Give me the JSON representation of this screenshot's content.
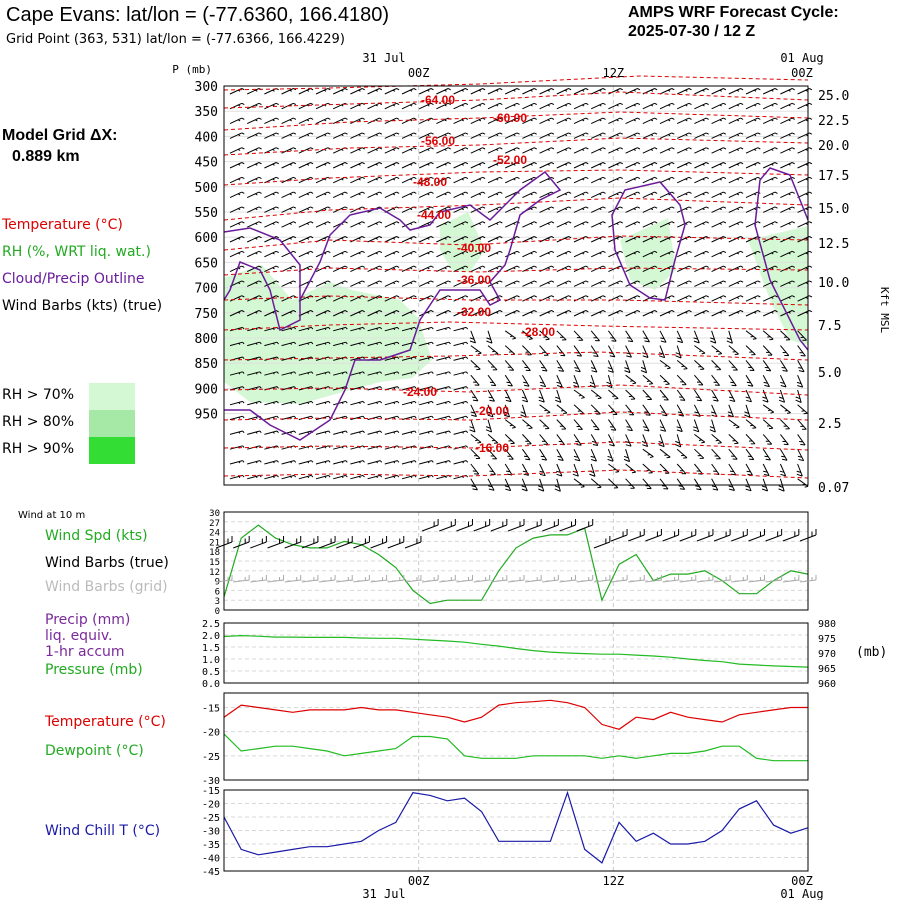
{
  "header": {
    "title": "Cape Evans:  lat/lon = (-77.6360, 166.4180)",
    "grid_point": "Grid Point (363, 531) lat/lon = (-77.6366, 166.4229)",
    "cycle_line1": "AMPS WRF Forecast Cycle:",
    "cycle_line2": "2025-07-30 / 12  Z",
    "model_grid_label": "Model Grid ΔX:",
    "model_grid_value": "0.889 km"
  },
  "legend": {
    "temperature": "Temperature (°C)",
    "rh": "RH (%, WRT liq. wat.)",
    "cloud": "Cloud/Precip Outline",
    "wind": "Wind Barbs (kts) (true)",
    "rh70": "RH > 70%",
    "rh80": "RH > 80%",
    "rh90": "RH > 90%",
    "wind10m": "Wind at 10 m",
    "wind_spd": "Wind Spd (kts)",
    "barbs_true": "Wind Barbs (true)",
    "barbs_grid": "Wind Barbs (grid)",
    "precip1": "Precip (mm)",
    "precip2": "liq. equiv.",
    "precip3": "1-hr accum",
    "pressure": "Pressure (mb)",
    "temp2": "Temperature (°C)",
    "dewpoint": "Dewpoint (°C)",
    "windchill": "Wind Chill T (°C)"
  },
  "colors": {
    "temperature": "#dd0000",
    "rh": "#22aa22",
    "cloud": "#6a1b9a",
    "wind": "#000000",
    "grid_barbs": "#aaaaaa",
    "rh70": "#d4f7d4",
    "rh80": "#a6e8a6",
    "rh90": "#33dd33",
    "windchill": "#1a1aa8",
    "pressure": "#22bb22",
    "dewpoint": "#22bb22"
  },
  "chart_data": [
    {
      "type": "contour",
      "name": "cross-section",
      "ylabel": "P (mb)",
      "y2label": "Kft MSL",
      "yticks": [
        "300",
        "350",
        "400",
        "450",
        "500",
        "550",
        "600",
        "650",
        "700",
        "750",
        "800",
        "850",
        "900",
        "950"
      ],
      "y2ticks": [
        "25.0",
        "22.5",
        "20.0",
        "17.5",
        "15.0",
        "12.5",
        "10.0",
        "7.5",
        "5.0",
        "2.5",
        "0.07"
      ],
      "top_time_axis": {
        "date_labels": [
          "31 Jul",
          "01 Aug"
        ],
        "hour_labels": [
          "00Z",
          "12Z",
          "00Z"
        ]
      },
      "temperature_labels": [
        "-64.00",
        "-60.00",
        "-56.00",
        "-52.00",
        "-48.00",
        "-44.00",
        "-40.00",
        "-36.00",
        "-32.00",
        "-28.00",
        "-24.00",
        "-20.00",
        "-16.00"
      ]
    },
    {
      "type": "line",
      "name": "wind",
      "yticks": [
        "30",
        "27",
        "24",
        "21",
        "18",
        "15",
        "12",
        "9",
        "6",
        "3",
        "0"
      ],
      "ylim": [
        0,
        30
      ],
      "series": [
        {
          "name": "Wind Spd (kts)",
          "values": [
            4,
            22,
            26,
            22,
            20,
            19,
            19,
            21,
            20,
            17,
            13,
            6,
            2,
            3,
            3,
            3,
            12,
            19,
            22,
            23,
            23,
            25,
            3,
            14,
            17,
            9,
            11,
            11,
            12,
            9,
            5,
            5,
            9,
            12,
            11
          ]
        }
      ]
    },
    {
      "type": "line",
      "name": "precip-pressure",
      "yticks": [
        "2.5",
        "2.0",
        "1.5",
        "1.0",
        "0.5",
        "0.0"
      ],
      "y2ticks": [
        "980",
        "975",
        "970",
        "965",
        "960"
      ],
      "y2label": "(mb)",
      "ylim": [
        0,
        2.5
      ],
      "y2lim": [
        960,
        980
      ],
      "series": [
        {
          "name": "Pressure (mb)",
          "values": [
            975.5,
            975.8,
            975.6,
            975.3,
            975.3,
            975.2,
            975.2,
            975.2,
            975.0,
            974.9,
            974.9,
            974.6,
            974.3,
            974.0,
            973.6,
            972.9,
            972.3,
            971.5,
            970.8,
            970.3,
            970.0,
            969.8,
            969.6,
            969.6,
            969.3,
            969.0,
            968.6,
            968.0,
            967.5,
            967.1,
            966.3,
            966.0,
            965.7,
            965.5,
            965.3
          ]
        }
      ]
    },
    {
      "type": "line",
      "name": "temperature-dewpoint",
      "yticks": [
        "-15",
        "-20",
        "-25",
        "-30"
      ],
      "ylim": [
        -30,
        -12
      ],
      "series": [
        {
          "name": "Temperature (°C)",
          "values": [
            -17,
            -14.5,
            -15,
            -15.5,
            -16,
            -15.5,
            -15.5,
            -15.5,
            -15,
            -15.5,
            -15.5,
            -16,
            -16.5,
            -17,
            -18,
            -17,
            -14.5,
            -14,
            -13.8,
            -13.5,
            -14,
            -15,
            -18.5,
            -19.5,
            -17,
            -17.5,
            -16,
            -17,
            -17.5,
            -18,
            -16.5,
            -16,
            -15.5,
            -15,
            -15
          ]
        },
        {
          "name": "Dewpoint (°C)",
          "values": [
            -20.5,
            -24,
            -23.5,
            -23,
            -23,
            -23.5,
            -24,
            -25,
            -24.5,
            -24,
            -23.5,
            -21,
            -21,
            -21.5,
            -25,
            -25.5,
            -25.5,
            -25.5,
            -25,
            -25,
            -25,
            -25,
            -25.5,
            -25,
            -25.5,
            -25,
            -24.5,
            -24.5,
            -24,
            -23,
            -23,
            -25.5,
            -26,
            -26,
            -26
          ]
        }
      ]
    },
    {
      "type": "line",
      "name": "wind-chill",
      "yticks": [
        "-15",
        "-20",
        "-25",
        "-30",
        "-35",
        "-40",
        "-45"
      ],
      "ylim": [
        -45,
        -15
      ],
      "series": [
        {
          "name": "Wind Chill T (°C)",
          "values": [
            -25,
            -37,
            -39,
            -38,
            -37,
            -36,
            -36,
            -35,
            -34,
            -30,
            -27,
            -16,
            -17,
            -19,
            -18,
            -23,
            -34,
            -34,
            -34,
            -34,
            -16,
            -37,
            -42,
            -27,
            -34,
            -31,
            -35,
            -35,
            -34,
            -30,
            -22,
            -19,
            -28,
            -31,
            -29
          ]
        }
      ]
    }
  ],
  "bottom_axis": {
    "hour_labels": [
      "00Z",
      "12Z",
      "00Z"
    ],
    "date_labels": [
      "31 Jul",
      "01 Aug"
    ]
  }
}
